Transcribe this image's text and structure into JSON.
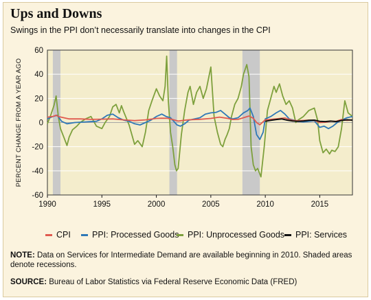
{
  "title": "Ups and Downs",
  "subtitle": "Swings in the PPI don’t necessarily translate into changes in the CPI",
  "note": {
    "label": "NOTE:",
    "text": "Data on Services for Intermediate Demand are available beginning in 2010. Shaded areas denote recessions."
  },
  "source": {
    "label": "SOURCE:",
    "text": "Bureau of Labor Statistics via Federal Reserve Economic Data (FRED)"
  },
  "colors": {
    "background": "#fbf3de",
    "plot_background": "#f4edcc",
    "recession": "#c9c9c9",
    "cpi": "#e05a4f",
    "processed": "#2e78b7",
    "unprocessed": "#7da03c",
    "services": "#111111"
  },
  "chart_data": {
    "type": "line",
    "title": "",
    "xlabel": "",
    "ylabel": "PERCENT CHANGE FROM A YEAR AGO",
    "xlim": [
      1990,
      2018
    ],
    "ylim": [
      -60,
      60
    ],
    "x_ticks": [
      1990,
      1995,
      2000,
      2005,
      2010,
      2015
    ],
    "y_ticks": [
      60,
      40,
      20,
      0,
      -20,
      -40,
      -60
    ],
    "grid": true,
    "legend_position": "bottom",
    "recessions": [
      [
        1990.5,
        1991.2
      ],
      [
        2001.2,
        2001.9
      ],
      [
        2007.9,
        2009.5
      ]
    ],
    "series": [
      {
        "name": "CPI",
        "color": "#e05a4f",
        "x": [
          1990.0,
          1990.5,
          1990.8,
          1991.0,
          1991.5,
          1992.0,
          1993.0,
          1994.0,
          1995.0,
          1996.0,
          1997.0,
          1998.0,
          1999.0,
          2000.0,
          2000.5,
          2001.0,
          2001.5,
          2002.0,
          2002.5,
          2003.0,
          2004.0,
          2005.0,
          2005.8,
          2006.5,
          2007.0,
          2007.5,
          2008.0,
          2008.5,
          2008.9,
          2009.2,
          2009.5,
          2010.0,
          2011.0,
          2011.8,
          2012.5,
          2013.0,
          2014.0,
          2014.5,
          2015.0,
          2015.5,
          2016.0,
          2016.5,
          2017.0,
          2017.5,
          2018.0
        ],
        "y": [
          4.5,
          5,
          6,
          5,
          4,
          3,
          3,
          2.6,
          2.8,
          3,
          2.2,
          1.6,
          2.2,
          3.4,
          3.6,
          3.5,
          2.5,
          1.2,
          1.8,
          2.3,
          2.7,
          3.4,
          4.5,
          3.5,
          2.5,
          2.6,
          4,
          5.4,
          3.5,
          0,
          -1.8,
          2.3,
          3,
          3.8,
          1.8,
          1.5,
          2,
          1.8,
          0,
          0.2,
          1,
          1,
          2.5,
          1.8,
          2.2
        ]
      },
      {
        "name": "PPI: Processed Goods",
        "color": "#2e78b7",
        "x": [
          1990.0,
          1990.5,
          1990.9,
          1991.3,
          1991.8,
          1992.5,
          1993.5,
          1994.5,
          1995.0,
          1995.5,
          1996.0,
          1996.5,
          1997.0,
          1997.5,
          1998.0,
          1998.5,
          1999.0,
          1999.5,
          2000.0,
          2000.5,
          2000.9,
          2001.3,
          2001.6,
          2001.9,
          2002.2,
          2002.6,
          2003.0,
          2003.5,
          2004.0,
          2004.5,
          2005.0,
          2005.5,
          2005.9,
          2006.3,
          2006.7,
          2007.0,
          2007.5,
          2008.0,
          2008.4,
          2008.6,
          2008.9,
          2009.2,
          2009.5,
          2009.8,
          2010.0,
          2010.5,
          2011.0,
          2011.4,
          2011.8,
          2012.2,
          2012.6,
          2013.0,
          2013.5,
          2014.0,
          2014.5,
          2015.0,
          2015.4,
          2015.8,
          2016.2,
          2016.6,
          2017.0,
          2017.5,
          2018.0
        ],
        "y": [
          3,
          5,
          6,
          1,
          -1,
          0,
          0.5,
          1,
          3,
          6,
          7,
          4,
          2,
          1,
          -1,
          -2,
          0,
          2,
          5,
          7,
          5,
          4,
          1,
          -2,
          -3,
          -1,
          2,
          3,
          4,
          7,
          8,
          8.5,
          10,
          7,
          4,
          3,
          4,
          8,
          10,
          12,
          5,
          -10,
          -14,
          -8,
          3,
          5,
          8,
          10,
          7,
          3,
          2,
          1,
          0.5,
          1,
          1.5,
          -4,
          -3,
          -5,
          -3,
          0,
          2,
          4,
          5
        ]
      },
      {
        "name": "PPI: Unprocessed Goods",
        "color": "#7da03c",
        "x": [
          1990.0,
          1990.3,
          1990.6,
          1990.8,
          1991.0,
          1991.2,
          1991.5,
          1991.8,
          1992.0,
          1992.3,
          1992.7,
          1993.0,
          1993.5,
          1994.0,
          1994.5,
          1995.0,
          1995.3,
          1995.7,
          1996.0,
          1996.3,
          1996.6,
          1996.8,
          1997.0,
          1997.5,
          1998.0,
          1998.3,
          1998.7,
          1999.0,
          1999.3,
          1999.6,
          2000.0,
          2000.3,
          2000.6,
          2000.8,
          2000.95,
          2001.1,
          2001.3,
          2001.5,
          2001.7,
          2001.85,
          2002.0,
          2002.3,
          2002.6,
          2002.9,
          2003.1,
          2003.4,
          2003.7,
          2004.0,
          2004.3,
          2004.6,
          2005.0,
          2005.3,
          2005.6,
          2005.9,
          2006.1,
          2006.3,
          2006.5,
          2006.7,
          2006.9,
          2007.2,
          2007.5,
          2007.8,
          2008.0,
          2008.3,
          2008.5,
          2008.7,
          2008.9,
          2009.1,
          2009.3,
          2009.6,
          2009.9,
          2010.2,
          2010.5,
          2010.8,
          2011.0,
          2011.3,
          2011.6,
          2011.9,
          2012.2,
          2012.5,
          2012.8,
          2013.0,
          2013.5,
          2014.0,
          2014.5,
          2014.8,
          2015.0,
          2015.3,
          2015.6,
          2015.9,
          2016.1,
          2016.4,
          2016.7,
          2017.0,
          2017.3,
          2017.6,
          2018.0
        ],
        "y": [
          -1,
          6,
          14,
          22,
          5,
          -5,
          -12,
          -19,
          -12,
          -6,
          -3,
          0,
          3,
          5,
          -3,
          -5,
          0,
          5,
          13,
          15,
          8,
          14,
          9,
          -2,
          -18,
          -15,
          -20,
          -8,
          10,
          18,
          28,
          22,
          18,
          30,
          55,
          18,
          -8,
          -20,
          -35,
          -40,
          -38,
          -10,
          10,
          25,
          30,
          15,
          25,
          30,
          20,
          28,
          46,
          5,
          -8,
          -18,
          -20,
          -14,
          -10,
          -5,
          5,
          15,
          20,
          30,
          40,
          48,
          38,
          -20,
          -35,
          -40,
          -38,
          -45,
          -20,
          10,
          20,
          30,
          25,
          32,
          22,
          15,
          18,
          12,
          0,
          2,
          5,
          10,
          12,
          2,
          -15,
          -25,
          -22,
          -26,
          -23,
          -24,
          -20,
          -5,
          18,
          8,
          5
        ]
      },
      {
        "name": "PPI: Services",
        "color": "#111111",
        "x": [
          2010.0,
          2010.5,
          2011.0,
          2011.5,
          2012.0,
          2012.5,
          2013.0,
          2013.5,
          2014.0,
          2014.5,
          2015.0,
          2015.5,
          2016.0,
          2016.5,
          2017.0,
          2017.5,
          2018.0
        ],
        "y": [
          1,
          1.8,
          2.5,
          3,
          2,
          1.3,
          1,
          1.3,
          1.8,
          2,
          1,
          0.8,
          1.2,
          0.8,
          1.7,
          2.3,
          2
        ]
      }
    ]
  }
}
